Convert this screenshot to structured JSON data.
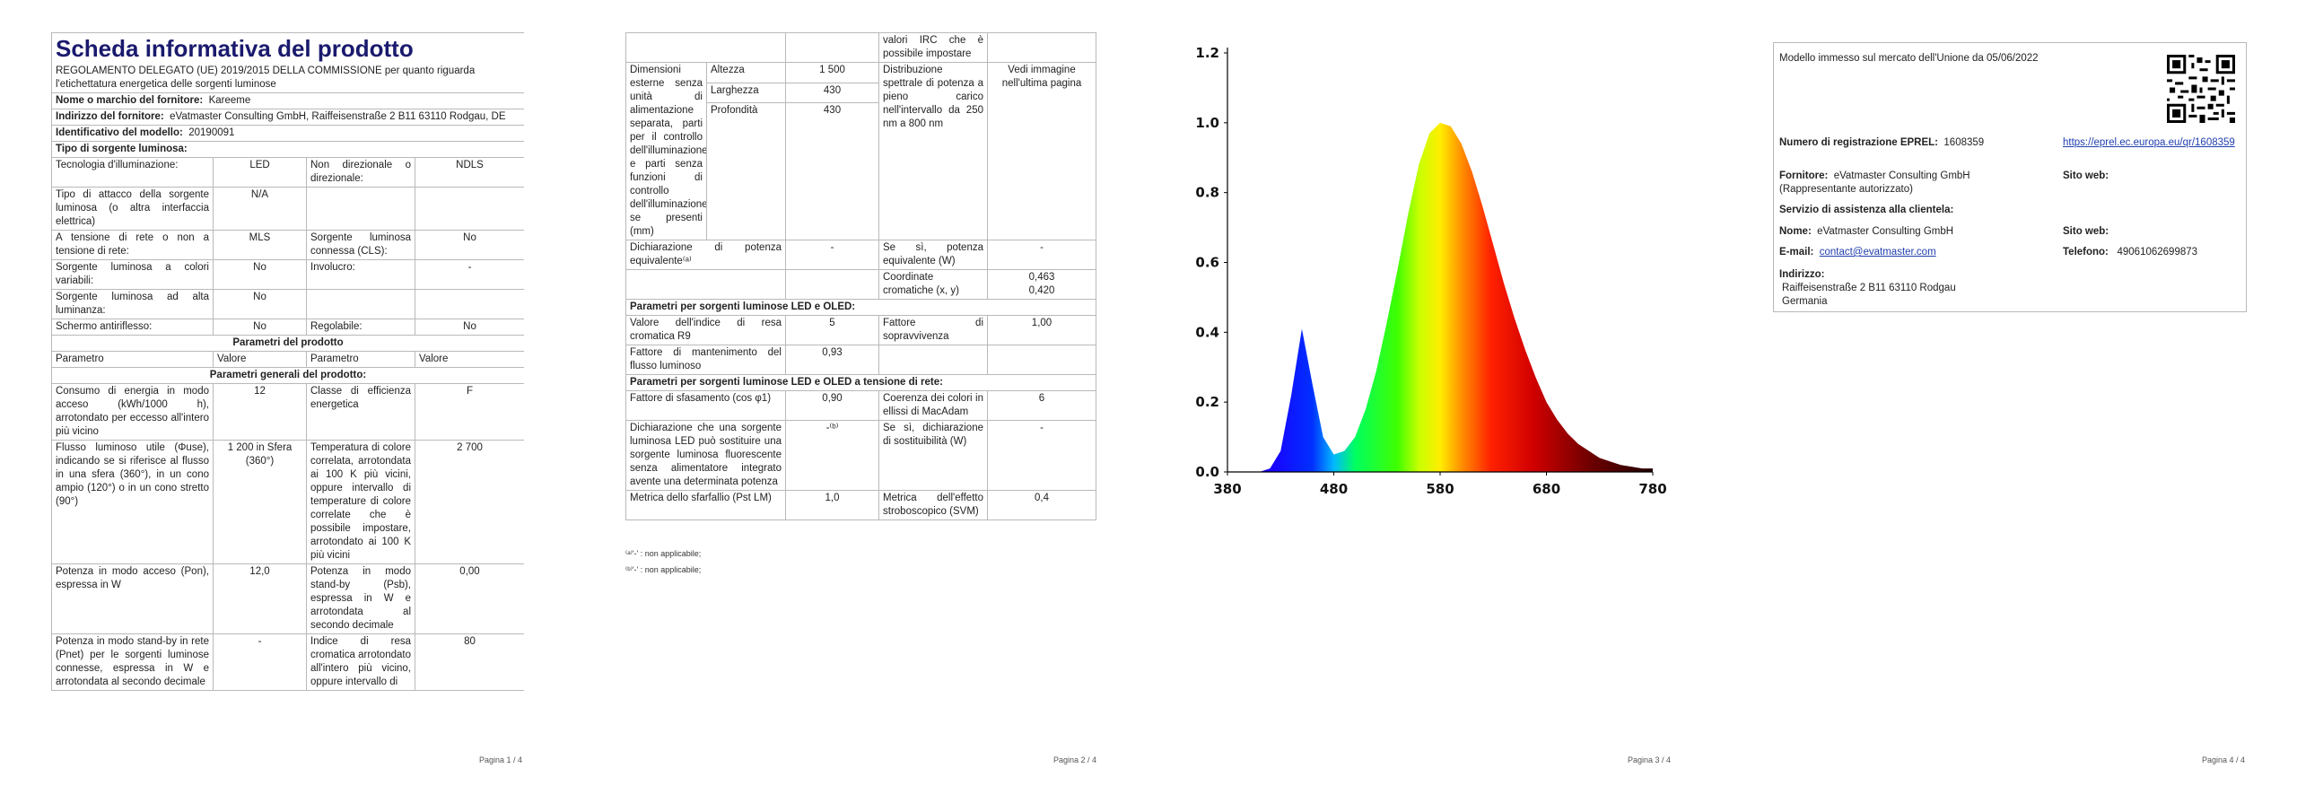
{
  "page1": {
    "title": "Scheda informativa del prodotto",
    "regulation": "REGOLAMENTO DELEGATO (UE) 2019/2015 DELLA COMMISSIONE per quanto riguarda l'etichettatura energetica delle sorgenti luminose",
    "supplier": {
      "label": "Nome o marchio del fornitore:",
      "value": "Kareeme"
    },
    "address": {
      "label": "Indirizzo del fornitore:",
      "value": "eVatmaster Consulting GmbH, Raiffeisenstraße 2 B11 63110 Rodgau, DE"
    },
    "model": {
      "label": "Identificativo del modello:",
      "value": "20190091"
    },
    "light_source_heading": "Tipo di sorgente luminosa:",
    "light_source_rows": [
      [
        "Tecnologia d'illuminazione:",
        "LED",
        "Non direzionale o direzionale:",
        "NDLS"
      ],
      [
        "Tipo di attacco della sorgente luminosa (o altra interfaccia elettrica)",
        "N/A",
        null,
        null
      ],
      [
        "A tensione di rete o non a tensione di rete:",
        "MLS",
        "Sorgente luminosa connessa (CLS):",
        "No"
      ],
      [
        "Sorgente luminosa a colori variabili:",
        "No",
        "Involucro:",
        "-"
      ],
      [
        "Sorgente luminosa ad alta luminanza:",
        "No",
        null,
        null
      ],
      [
        "Schermo antiriflesso:",
        "No",
        "Regolabile:",
        "No"
      ]
    ],
    "parameters_heading": "Parametri del prodotto",
    "parameters_header": [
      "Parametro",
      "Valore",
      "Parametro",
      "Valore"
    ],
    "general_heading": "Parametri generali del prodotto:",
    "general_rows": [
      [
        "Consumo di energia in modo acceso (kWh/1000 h), arrotondato per eccesso all'intero più vicino",
        "12",
        "Classe di efficienza energetica",
        "F"
      ],
      [
        "Flusso luminoso utile (Φuse), indicando se si riferisce al flusso in una sfera (360°), in un cono ampio (120°) o in un cono stretto (90°)",
        "1 200 in Sfera (360°)",
        "Temperatura di colore correlata, arrotondata ai 100 K più vicini, oppure intervallo di temperature di colore correlate che è possibile impostare, arrotondato ai 100 K più vicini",
        "2 700"
      ],
      [
        "Potenza in modo acceso (Pon), espressa in W",
        "12,0",
        "Potenza in modo stand-by (Psb), espressa in W e arrotondata al secondo decimale",
        "0,00"
      ],
      [
        "Potenza in modo stand-by in rete (Pnet) per le sorgenti luminose connesse, espressa in W e arrotondata al secondo decimale",
        "-",
        "Indice di resa cromatica arrotondato all'intero più vicino, oppure intervallo di",
        "80"
      ]
    ],
    "footer": "Pagina 1 / 4"
  },
  "page2": {
    "continued_row": "valori IRC che è possibile impostare",
    "dimensions": {
      "label": "Dimensioni esterne senza unità di alimentazione separata, parti per il controllo dell'illuminazione e parti senza funzioni di controllo dell'illuminazione, se presenti (mm)",
      "parts": [
        {
          "label": "Altezza",
          "value": "1 500"
        },
        {
          "label": "Larghezza",
          "value": "430"
        },
        {
          "label": "Profondità",
          "value": "430"
        }
      ],
      "spectrum_label": "Distribuzione spettrale di potenza a pieno carico nell'intervallo da 250 nm a 800 nm",
      "spectrum_value": "Vedi immagine nell'ultima pagina"
    },
    "rows": [
      [
        "Dichiarazione di potenza equivalente⁽ᵃ⁾",
        "-",
        "Se sì, potenza equivalente (W)",
        "-"
      ],
      [
        null,
        null,
        "Coordinate cromatiche (x, y)",
        [
          "0,463",
          "0,420"
        ]
      ]
    ],
    "led_heading": "Parametri per sorgenti luminose LED e OLED:",
    "led_rows": [
      [
        "Valore dell'indice di resa cromatica R9",
        "5",
        "Fattore di sopravvivenza",
        "1,00"
      ],
      [
        "Fattore di mantenimento del flusso luminoso",
        "0,93",
        null,
        null
      ]
    ],
    "mains_heading": "Parametri per sorgenti luminose LED e OLED a tensione di rete:",
    "mains_rows": [
      [
        "Fattore di sfasamento (cos φ1)",
        "0,90",
        "Coerenza dei colori in ellissi di MacAdam",
        "6"
      ],
      [
        "Dichiarazione che una sorgente luminosa LED può sostituire una sorgente luminosa fluorescente senza alimentatore integrato avente una determinata potenza",
        "-⁽ᵇ⁾",
        "Se sì, dichiarazione di sostituibilità (W)",
        "-"
      ],
      [
        "Metrica dello sfarfallio (Pst LM)",
        "1,0",
        "Metrica dell'effetto stroboscopico (SVM)",
        "0,4"
      ]
    ],
    "footnotes": [
      "⁽ᵃ⁾'-' : non applicabile;",
      "⁽ᵇ⁾'-' : non applicabile;"
    ],
    "footer": "Pagina 2 / 4"
  },
  "chart_data": {
    "type": "area",
    "x": [
      380,
      390,
      400,
      410,
      420,
      430,
      440,
      450,
      460,
      470,
      480,
      490,
      500,
      510,
      520,
      530,
      540,
      550,
      560,
      570,
      580,
      590,
      600,
      610,
      620,
      630,
      640,
      650,
      660,
      670,
      680,
      690,
      700,
      710,
      720,
      730,
      740,
      750,
      760,
      770,
      780
    ],
    "values": [
      0,
      0,
      0,
      0,
      0.01,
      0.06,
      0.22,
      0.41,
      0.25,
      0.1,
      0.05,
      0.06,
      0.1,
      0.18,
      0.29,
      0.43,
      0.58,
      0.74,
      0.88,
      0.97,
      1.0,
      0.99,
      0.94,
      0.86,
      0.76,
      0.65,
      0.54,
      0.44,
      0.35,
      0.27,
      0.2,
      0.15,
      0.11,
      0.08,
      0.06,
      0.04,
      0.03,
      0.02,
      0.015,
      0.01,
      0.01
    ],
    "xlim": [
      380,
      780
    ],
    "ylim": [
      0,
      1.2
    ],
    "xticks": [
      380,
      480,
      580,
      680,
      780
    ],
    "yticks": [
      {
        "value": 0,
        "label": "0.0"
      },
      {
        "value": 0.2,
        "label": "0.2"
      },
      {
        "value": 0.4,
        "label": "0.4"
      },
      {
        "value": 0.6,
        "label": "0.6"
      },
      {
        "value": 0.8,
        "label": "0.8"
      },
      {
        "value": 1.0,
        "label": "1.0"
      },
      {
        "value": 1.2,
        "label": "1.2"
      }
    ]
  },
  "page3": {
    "footer": "Pagina 3 / 4"
  },
  "page4": {
    "market_date": "Modello immesso sul mercato dell'Unione da 05/06/2022",
    "eprel": {
      "label": "Numero di registrazione EPREL:",
      "value": "1608359",
      "link": "https://eprel.ec.europa.eu/qr/1608359"
    },
    "supplier": {
      "label": "Fornitore:",
      "value": "eVatmaster Consulting GmbH (Rappresentante autorizzato)",
      "website_label": "Sito web:"
    },
    "service_heading": "Servizio di assistenza alla clientela:",
    "name": {
      "label": "Nome:",
      "value": "eVatmaster Consulting GmbH",
      "website_label": "Sito web:"
    },
    "email": {
      "label": "E-mail:",
      "value": "contact@evatmaster.com",
      "phone_label": "Telefono:",
      "phone": "49061062699873"
    },
    "address": {
      "label": "Indirizzo:",
      "lines": [
        "Raiffeisenstraße 2 B11 63110 Rodgau",
        "Germania"
      ]
    },
    "footer": "Pagina 4 / 4"
  }
}
